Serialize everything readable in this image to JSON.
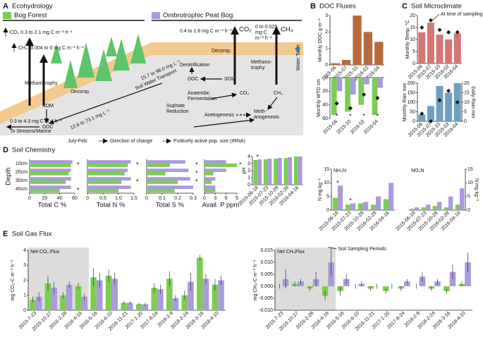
{
  "panels": [
    {
      "letter": "A",
      "title": "Ecohydrology"
    },
    {
      "letter": "B",
      "title": "DOC Fluxes"
    },
    {
      "letter": "C",
      "title": "Soil Microclimate"
    },
    {
      "letter": "D",
      "title": "Soil Chemistry"
    },
    {
      "letter": "E",
      "title": "Soil Gas Flux"
    }
  ],
  "diagram": {
    "bog_forest": "Bog Forest",
    "peat_bog": "Ombrotrophic Peat Bog",
    "forest_co2": "CO₂  0.3 to 2.1 mg C m⁻² h⁻¹",
    "forest_ch4": "CH₄ -0.004 to 0 mg C m⁻² h⁻¹",
    "bog_co2_rate": "0.4 to 1.8 mg C m⁻² h⁻¹",
    "bog_co2": "CO₂",
    "bog_ch4_rate": [
      "0 to 0.025",
      "mg C",
      "m⁻² h⁻¹"
    ],
    "bog_ch4": "CH₄",
    "decomp_forest": "Decomp.",
    "decomp_bog": "Decomp.",
    "methanotrophy": "Methanotrophy",
    "som_forest": "SOM",
    "doc_forest": "DOC",
    "export_rate": "0.3 to 4.3 mg C m⁻² h⁻¹",
    "export_to": "To Streams/Marine",
    "water_table": "Water Table",
    "denitrification": "Denitrification",
    "doc_conc_upper": "15.7 to 98.0 mg L⁻¹",
    "soil_water": "Soil Water Transport",
    "doc_conc_lower": "12.6 to 73.1 mg L⁻¹",
    "doc_bog": "DOC",
    "som_bog": "SOM",
    "fermentation": [
      "Anaerobic",
      "Fermentation"
    ],
    "sulphate": [
      "Suphate",
      "Reduction"
    ],
    "acetogenesis": "Acetogenesis",
    "methanogenesis": [
      "Meth-",
      "anogenesis"
    ],
    "methanotrophy_bog": [
      "Methano-",
      "trophy"
    ],
    "co2_node": "CO₂",
    "ch4_node": "CH₄",
    "legend_period": "July-Feb:",
    "legend_direction": "Direction of change",
    "legend_active": "Putitively active pop. size (rRNA)"
  },
  "chart_data": [
    {
      "type": "bar",
      "ylabel": "Monthly DOC g m⁻²",
      "categories": [
        "2015-06",
        "2015-07",
        "2015-10",
        "2016-02",
        "2016-04"
      ],
      "values": [
        0.1,
        0.3,
        3.0,
        2.0,
        1.4
      ],
      "color": "#b86a3f",
      "ylim": [
        0,
        3
      ],
      "yticks": [
        0,
        1,
        2,
        3
      ]
    },
    {
      "type": "bar",
      "ylabel": "Monthly WTD cm",
      "y_inverted": true,
      "categories": [
        "2015-06",
        "2015-10",
        "2016-02",
        "2016-04"
      ],
      "series": [
        {
          "color": "#7ccd52",
          "values": [
            55,
            50,
            40,
            55
          ]
        },
        {
          "color": "#a99bdc",
          "values": [
            20,
            25,
            10,
            15
          ]
        },
        {
          "marker": "diamond",
          "color": "#111",
          "values": [
            38,
            45,
            25,
            30
          ]
        }
      ],
      "significance": [
        "*",
        "*",
        "*",
        "*"
      ],
      "ylim": [
        0,
        60
      ],
      "yticks": [
        0,
        20,
        40,
        60
      ]
    },
    {
      "type": "bar",
      "ylabel": "Monthly Temp. °C",
      "annotation": "At time of sampling",
      "annotation_point": 1,
      "categories": [
        "2015-06",
        "2015-07",
        "2015-10",
        "2016-02",
        "2016-04"
      ],
      "series": [
        {
          "color": "#d27676",
          "values": [
            13,
            17,
            12,
            10,
            12.5
          ]
        },
        {
          "marker": "diamond",
          "color": "#111",
          "values": [
            15,
            18,
            14,
            13,
            13
          ]
        }
      ],
      "ylim": [
        0,
        20
      ],
      "yticks": [
        0,
        5,
        10,
        15,
        20
      ]
    },
    {
      "type": "bar",
      "ylabel": "Monthly Rain mm",
      "y2label": "Daily Rain mm",
      "categories": [
        "2015-06",
        "2015-07",
        "2015-10",
        "2016-02",
        "2016-04"
      ],
      "series": [
        {
          "color": "#6f9fc0",
          "values": [
            35,
            80,
            185,
            150,
            200
          ]
        },
        {
          "marker": "diamond",
          "color": "#111",
          "axis": "y2",
          "values": [
            4,
            0,
            11,
            16,
            10
          ]
        }
      ],
      "ylim": [
        0,
        200
      ],
      "yticks": [
        0,
        50,
        100,
        150,
        200
      ],
      "y2lim": [
        0,
        20
      ],
      "y2ticks": [
        0,
        5,
        10,
        15,
        20
      ]
    },
    {
      "type": "hbar",
      "ylabel": "Depth",
      "xlabel": "Total C %",
      "categories": [
        "10cm",
        "20cm",
        "30cm",
        "40cm"
      ],
      "series": [
        {
          "color": "#a99bdc",
          "values": [
            57,
            55,
            55,
            55
          ]
        },
        {
          "color": "#7ccd52",
          "values": [
            55,
            52,
            48,
            40
          ]
        }
      ],
      "significance": [
        "*",
        null,
        null,
        "*"
      ],
      "xlim": [
        0,
        60
      ],
      "xticks": [
        0,
        20,
        40,
        60
      ]
    },
    {
      "type": "hbar",
      "xlabel": "Total N %",
      "series": [
        {
          "color": "#a99bdc",
          "values": [
            1.4,
            1.3,
            1.4,
            1.4
          ]
        },
        {
          "color": "#7ccd52",
          "values": [
            1.3,
            1.2,
            1.1,
            1.0
          ]
        }
      ],
      "significance": [
        "*",
        null,
        "*",
        null
      ],
      "xlim": [
        0,
        1.5
      ],
      "xticks": [
        0,
        0.5,
        {
          "value": 1,
          "label": "1.0"
        },
        1.5
      ]
    },
    {
      "type": "hbar",
      "xlabel": "Total S %",
      "series": [
        {
          "color": "#a99bdc",
          "values": [
            0.25,
            0.27,
            0.28,
            0.3
          ]
        },
        {
          "color": "#7ccd52",
          "values": [
            0.15,
            0.12,
            0.2,
            0.18
          ]
        }
      ],
      "significance": [
        "*",
        "*",
        "*",
        null
      ],
      "xlim": [
        0,
        0.3
      ],
      "xticks": [
        0,
        0.1,
        0.2,
        0.3
      ]
    },
    {
      "type": "hbar",
      "xlabel": "Avail. P ppm",
      "series": [
        {
          "color": "#a99bdc",
          "values": [
            6,
            6,
            3,
            3
          ]
        },
        {
          "color": "#7ccd52",
          "values": [
            9,
            2.5,
            2,
            3
          ]
        }
      ],
      "significance": [
        "*",
        null,
        null,
        null
      ],
      "xlim": [
        0,
        9
      ],
      "xticks": [
        0,
        3,
        6,
        9
      ]
    },
    {
      "type": "bar",
      "ylabel": "pH",
      "categories": [
        "2015-06-18",
        "2015-07-23",
        "2015-10-28",
        "2016-02-28",
        "2016-04-16"
      ],
      "series": [
        {
          "color": "#7ccd52",
          "values": [
            3.5,
            3.6,
            3.7,
            3.8,
            4.0
          ]
        },
        {
          "color": "#a99bdc",
          "values": [
            3.6,
            3.7,
            3.8,
            3.9,
            4.0
          ]
        }
      ],
      "significance": [
        "*",
        null,
        null,
        null,
        null
      ],
      "ylim": [
        0,
        4
      ],
      "yticks": [
        0,
        1,
        2,
        3,
        4
      ]
    },
    {
      "type": "bar",
      "title": "NH₄N",
      "ylabel": "N mg kg⁻¹",
      "categories": [
        "2015-06-18",
        "2015-07-23",
        "2015-10-28",
        "2016-02-28",
        "2016-04-16"
      ],
      "series": [
        {
          "color": "#7ccd52",
          "values": [
            4.5,
            2,
            2.5,
            2,
            4
          ]
        },
        {
          "color": "#a99bdc",
          "values": [
            9,
            2.5,
            3,
            5,
            10
          ]
        }
      ],
      "significance": [
        "*",
        "*",
        null,
        null,
        null
      ],
      "ylim": [
        0,
        15
      ],
      "yticks": [
        0,
        5,
        10,
        15
      ]
    },
    {
      "type": "bar",
      "title": "NO₃N",
      "ylabel": "N mg kg⁻¹",
      "y_axis": "right",
      "categories": [
        "2015-06-18",
        "2015-07-23",
        "2015-10-28",
        "2016-02-28",
        "2016-04-16"
      ],
      "series": [
        {
          "color": "#7ccd52",
          "values": [
            0.5,
            1,
            1.5,
            1,
            2
          ]
        },
        {
          "color": "#a99bdc",
          "values": [
            1,
            2,
            3,
            5,
            8
          ]
        }
      ],
      "ylim": [
        0,
        15
      ],
      "yticks": [
        0,
        5,
        10,
        15
      ]
    },
    {
      "type": "bar",
      "title": "Net CO₂ Flux",
      "ylabel": "mg CO₂-C m⁻² h⁻¹",
      "shaded": [
        [
          0,
          1
        ],
        [
          2,
          3
        ]
      ],
      "categories": [
        "2015-7-23",
        "2015-10-27",
        "2016-2-28",
        "2016-4-16",
        "2016-5-16",
        "2016-6-10",
        "2016-11-21",
        "2017-1-20",
        "2017-8-24",
        "2018-2-9",
        "2018-2-24",
        "2018-3-16",
        "2018-4-10"
      ],
      "series": [
        {
          "color": "#7ccd52",
          "values": [
            0.7,
            1.8,
            1.0,
            1.6,
            2.2,
            2.3,
            0.5,
            0.4,
            1.5,
            2.1,
            1.0,
            3.5,
            1.7
          ],
          "errors": [
            0.2,
            0.5,
            0.2,
            0.2,
            0.6,
            0.4,
            0.1,
            0.1,
            0.3,
            0.5,
            0.3,
            0.2,
            0.4
          ]
        },
        {
          "color": "#a99bdc",
          "values": [
            0.9,
            1.5,
            1.7,
            0.9,
            2.0,
            2.1,
            0.5,
            0.4,
            1.4,
            0.8,
            1.9,
            2.1,
            2.0
          ],
          "errors": [
            0.3,
            0.4,
            0.2,
            0.2,
            0.5,
            0.4,
            0.1,
            0.1,
            0.3,
            0.2,
            0.6,
            0.3,
            0.3
          ]
        }
      ],
      "ylim": [
        0,
        4
      ],
      "yticks": [
        0,
        1,
        2,
        3,
        4
      ]
    },
    {
      "type": "bar",
      "title": "Net CH₄Flux",
      "ylabel": "mg CH₄-C m⁻² h⁻¹",
      "shaded": [
        [
          0,
          1
        ],
        [
          2,
          3
        ]
      ],
      "annotation": "Soil Sampling Periods",
      "annotation_point": 3,
      "categories": [
        "2015-7-23",
        "2015-10-27",
        "2016-2-28",
        "2016-4-16",
        "2016-5-16",
        "2016-6-10",
        "2016-11-21",
        "2017-1-20",
        "2017-8-24",
        "2018-2-9",
        "2018-2-24",
        "2018-3-16",
        "2018-4-10"
      ],
      "series": [
        {
          "color": "#7ccd52",
          "values": [
            0.0,
            0.001,
            -0.001,
            -0.004,
            -0.002,
            0.0,
            -0.001,
            -0.002,
            -0.001,
            0.0,
            -0.001,
            -0.002,
            0.001
          ],
          "errors": [
            0.001,
            0.001,
            0.001,
            0.002,
            0.002,
            0.001,
            0.001,
            0.001,
            0.001,
            0.001,
            0.001,
            0.001,
            0.001
          ]
        },
        {
          "color": "#a99bdc",
          "values": [
            0.003,
            0.002,
            0.003,
            0.01,
            0.003,
            0.001,
            0.0,
            0.0,
            0.002,
            0.004,
            0.002,
            0.006,
            0.01
          ],
          "errors": [
            0.004,
            0.001,
            0.003,
            0.006,
            0.002,
            0.001,
            0.001,
            0.001,
            0.001,
            0.002,
            0.001,
            0.003,
            0.004
          ]
        }
      ],
      "ylim": [
        -0.01,
        0.015
      ],
      "yticks": [
        {
          "value": -0.01,
          "label": "-0.010"
        },
        {
          "value": -0.005,
          "label": "-0.005"
        },
        {
          "value": 0,
          "label": "0.000"
        },
        {
          "value": 0.005,
          "label": "0.005"
        },
        {
          "value": 0.01,
          "label": "0.010"
        },
        {
          "value": 0.015,
          "label": "0.015"
        }
      ]
    }
  ]
}
